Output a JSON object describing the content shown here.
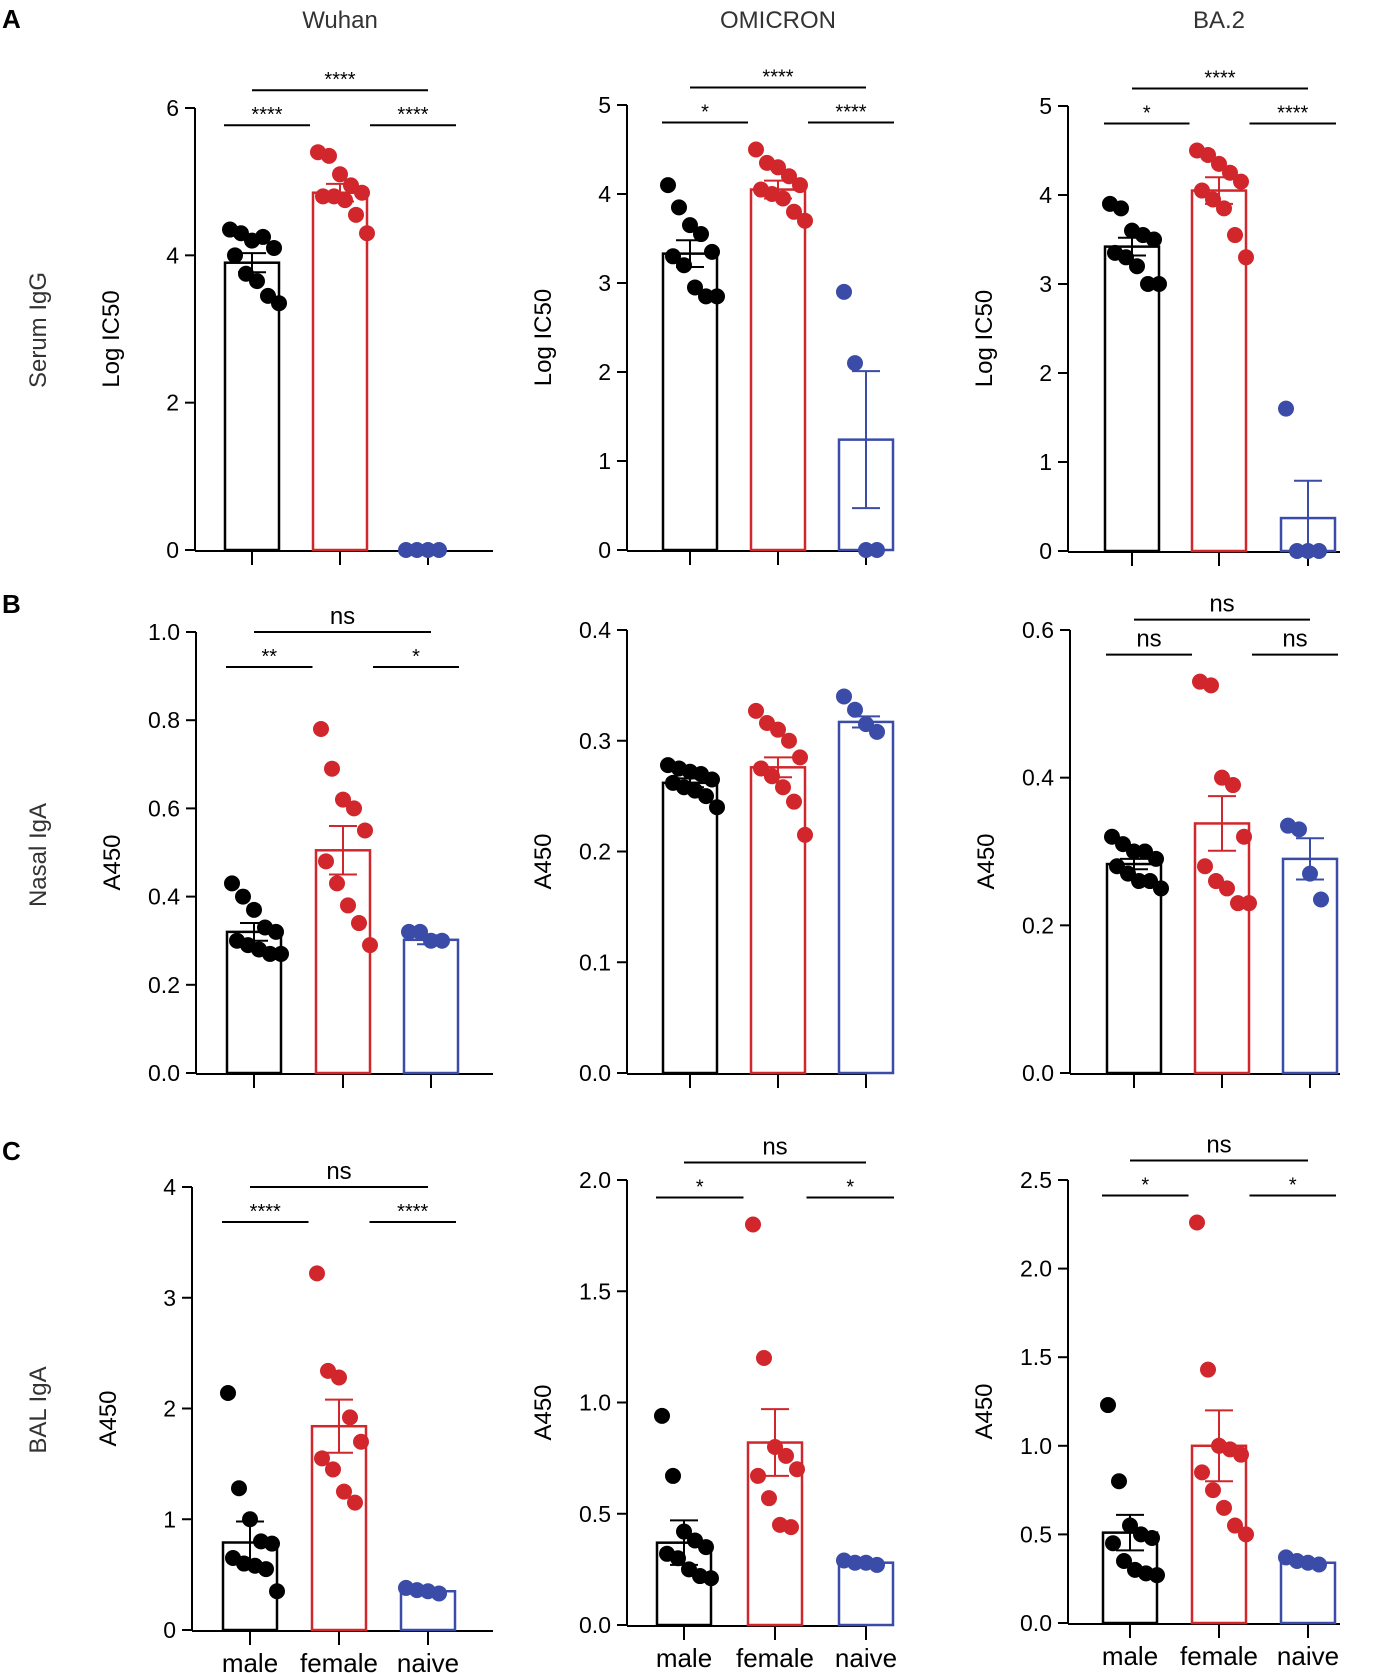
{
  "figure": {
    "panel_letters": [
      "A",
      "B",
      "C"
    ],
    "row_labels": [
      "Serum IgG",
      "Nasal IgA",
      "BAL IgA"
    ],
    "column_titles": [
      "Wuhan",
      "OMICRON",
      "BA.2"
    ],
    "group_labels": [
      "male",
      "female",
      "naive"
    ],
    "colors": {
      "male": "#000000",
      "female": "#d1262b",
      "naive": "#3a4ca8"
    }
  },
  "chart_data": [
    {
      "type": "bar",
      "panel": "A",
      "row_label": "Serum IgG",
      "title": "Wuhan",
      "ylabel": "Log IC50",
      "ylim": [
        0,
        6
      ],
      "yticks": [
        "0",
        "2",
        "4",
        "6"
      ],
      "categories": [
        "male",
        "female",
        "naive"
      ],
      "show_category_labels": false,
      "means": [
        3.9,
        4.85,
        0.0
      ],
      "sem": [
        0.13,
        0.12,
        0.0
      ],
      "points": [
        [
          4.35,
          4.3,
          4.2,
          4.25,
          4.1,
          4.0,
          3.75,
          3.65,
          3.45,
          3.35
        ],
        [
          5.4,
          5.35,
          5.1,
          4.95,
          4.85,
          4.8,
          4.8,
          4.75,
          4.55,
          4.3
        ],
        [
          0.0,
          0.0,
          0.0,
          0.0
        ]
      ],
      "significance": [
        {
          "from": 0,
          "to": 2,
          "label": "****",
          "level": 2
        },
        {
          "from": 0,
          "to": 1,
          "label": "****",
          "level": 1
        },
        {
          "from": 1,
          "to": 2,
          "label": "****",
          "level": 1
        }
      ]
    },
    {
      "type": "bar",
      "panel": "A",
      "row_label": "Serum IgG",
      "title": "OMICRON",
      "ylabel": "Log IC50",
      "ylim": [
        0,
        5
      ],
      "yticks": [
        "0",
        "1",
        "2",
        "3",
        "4",
        "5"
      ],
      "categories": [
        "male",
        "female",
        "naive"
      ],
      "show_category_labels": false,
      "means": [
        3.33,
        4.05,
        1.24
      ],
      "sem": [
        0.15,
        0.1,
        0.77
      ],
      "points": [
        [
          4.1,
          3.85,
          3.65,
          3.55,
          3.35,
          3.3,
          3.2,
          2.95,
          2.85,
          2.85
        ],
        [
          4.5,
          4.35,
          4.3,
          4.2,
          4.1,
          4.05,
          4.0,
          3.95,
          3.8,
          3.7
        ],
        [
          2.9,
          2.1,
          0.0,
          0.0
        ]
      ],
      "significance": [
        {
          "from": 0,
          "to": 2,
          "label": "****",
          "level": 2
        },
        {
          "from": 0,
          "to": 1,
          "label": "*",
          "level": 1
        },
        {
          "from": 1,
          "to": 2,
          "label": "****",
          "level": 1
        }
      ]
    },
    {
      "type": "bar",
      "panel": "A",
      "row_label": "Serum IgG",
      "title": "BA.2",
      "ylabel": "Log IC50",
      "ylim": [
        0,
        5
      ],
      "yticks": [
        "0",
        "1",
        "2",
        "3",
        "4",
        "5"
      ],
      "categories": [
        "male",
        "female",
        "naive"
      ],
      "show_category_labels": false,
      "means": [
        3.42,
        4.05,
        0.37
      ],
      "sem": [
        0.1,
        0.15,
        0.42
      ],
      "points": [
        [
          3.9,
          3.85,
          3.6,
          3.55,
          3.5,
          3.35,
          3.3,
          3.2,
          3.0,
          3.0
        ],
        [
          4.5,
          4.45,
          4.35,
          4.25,
          4.15,
          4.05,
          3.95,
          3.85,
          3.55,
          3.3
        ],
        [
          1.6,
          0.0,
          0.0,
          0.0
        ]
      ],
      "significance": [
        {
          "from": 0,
          "to": 2,
          "label": "****",
          "level": 2
        },
        {
          "from": 0,
          "to": 1,
          "label": "*",
          "level": 1
        },
        {
          "from": 1,
          "to": 2,
          "label": "****",
          "level": 1
        }
      ]
    },
    {
      "type": "bar",
      "panel": "B",
      "row_label": "Nasal IgA",
      "title": "",
      "ylabel": "A450",
      "ylim": [
        0,
        1.0
      ],
      "yticks": [
        "0.0",
        "0.2",
        "0.4",
        "0.6",
        "0.8",
        "1.0"
      ],
      "categories": [
        "male",
        "female",
        "naive"
      ],
      "show_category_labels": false,
      "means": [
        0.32,
        0.505,
        0.302
      ],
      "sem": [
        0.02,
        0.055,
        0.01
      ],
      "points": [
        [
          0.43,
          0.4,
          0.37,
          0.33,
          0.32,
          0.3,
          0.29,
          0.28,
          0.27,
          0.27
        ],
        [
          0.78,
          0.69,
          0.62,
          0.6,
          0.55,
          0.48,
          0.43,
          0.38,
          0.34,
          0.29
        ],
        [
          0.32,
          0.32,
          0.3,
          0.3
        ]
      ],
      "significance": [
        {
          "from": 0,
          "to": 2,
          "label": "ns",
          "level": 2
        },
        {
          "from": 0,
          "to": 1,
          "label": "**",
          "level": 1
        },
        {
          "from": 1,
          "to": 2,
          "label": "*",
          "level": 1
        }
      ]
    },
    {
      "type": "bar",
      "panel": "B",
      "row_label": "Nasal IgA",
      "title": "",
      "ylabel": "A450",
      "ylim": [
        0,
        0.4
      ],
      "yticks": [
        "0.0",
        "0.1",
        "0.2",
        "0.3",
        "0.4"
      ],
      "categories": [
        "male",
        "female",
        "naive"
      ],
      "show_category_labels": false,
      "means": [
        0.262,
        0.276,
        0.317
      ],
      "sem": [
        0.004,
        0.009,
        0.005
      ],
      "points": [
        [
          0.278,
          0.275,
          0.272,
          0.27,
          0.265,
          0.262,
          0.258,
          0.255,
          0.25,
          0.24
        ],
        [
          0.327,
          0.316,
          0.31,
          0.3,
          0.285,
          0.275,
          0.268,
          0.258,
          0.245,
          0.215
        ],
        [
          0.34,
          0.328,
          0.315,
          0.308
        ]
      ],
      "significance": []
    },
    {
      "type": "bar",
      "panel": "B",
      "row_label": "Nasal IgA",
      "title": "",
      "ylabel": "A450",
      "ylim": [
        0,
        0.6
      ],
      "yticks": [
        "0.0",
        "0.2",
        "0.4",
        "0.6"
      ],
      "categories": [
        "male",
        "female",
        "naive"
      ],
      "show_category_labels": false,
      "means": [
        0.283,
        0.338,
        0.29
      ],
      "sem": [
        0.007,
        0.037,
        0.028
      ],
      "points": [
        [
          0.32,
          0.31,
          0.3,
          0.3,
          0.29,
          0.28,
          0.27,
          0.26,
          0.26,
          0.25
        ],
        [
          0.53,
          0.525,
          0.4,
          0.39,
          0.32,
          0.28,
          0.26,
          0.25,
          0.23,
          0.23
        ],
        [
          0.335,
          0.33,
          0.27,
          0.235
        ]
      ],
      "significance": [
        {
          "from": 0,
          "to": 2,
          "label": "ns",
          "level": 2
        },
        {
          "from": 0,
          "to": 1,
          "label": "ns",
          "level": 1
        },
        {
          "from": 1,
          "to": 2,
          "label": "ns",
          "level": 1
        }
      ]
    },
    {
      "type": "bar",
      "panel": "C",
      "row_label": "BAL IgA",
      "title": "",
      "ylabel": "A450",
      "ylim": [
        0,
        4
      ],
      "yticks": [
        "0",
        "1",
        "2",
        "3",
        "4"
      ],
      "categories": [
        "male",
        "female",
        "naive"
      ],
      "show_category_labels": true,
      "means": [
        0.79,
        1.84,
        0.35
      ],
      "sem": [
        0.19,
        0.24,
        0.02
      ],
      "points": [
        [
          2.14,
          1.28,
          1.0,
          0.8,
          0.78,
          0.65,
          0.6,
          0.58,
          0.55,
          0.35
        ],
        [
          3.22,
          2.34,
          2.28,
          1.92,
          1.7,
          1.55,
          1.45,
          1.25,
          1.15
        ],
        [
          0.38,
          0.36,
          0.35,
          0.33
        ]
      ],
      "significance": [
        {
          "from": 0,
          "to": 2,
          "label": "ns",
          "level": 2
        },
        {
          "from": 0,
          "to": 1,
          "label": "****",
          "level": 1
        },
        {
          "from": 1,
          "to": 2,
          "label": "****",
          "level": 1
        }
      ]
    },
    {
      "type": "bar",
      "panel": "C",
      "row_label": "BAL IgA",
      "title": "",
      "ylabel": "A450",
      "ylim": [
        0,
        2.0
      ],
      "yticks": [
        "0.0",
        "0.5",
        "1.0",
        "1.5",
        "2.0"
      ],
      "categories": [
        "male",
        "female",
        "naive"
      ],
      "show_category_labels": true,
      "means": [
        0.37,
        0.82,
        0.28
      ],
      "sem": [
        0.1,
        0.15,
        0.01
      ],
      "points": [
        [
          0.94,
          0.67,
          0.42,
          0.38,
          0.35,
          0.32,
          0.3,
          0.25,
          0.22,
          0.21
        ],
        [
          1.8,
          1.2,
          0.8,
          0.76,
          0.7,
          0.67,
          0.57,
          0.45,
          0.44
        ],
        [
          0.29,
          0.28,
          0.28,
          0.27
        ]
      ],
      "significance": [
        {
          "from": 0,
          "to": 2,
          "label": "ns",
          "level": 2
        },
        {
          "from": 0,
          "to": 1,
          "label": "*",
          "level": 1
        },
        {
          "from": 1,
          "to": 2,
          "label": "*",
          "level": 1
        }
      ]
    },
    {
      "type": "bar",
      "panel": "C",
      "row_label": "BAL IgA",
      "title": "",
      "ylabel": "A450",
      "ylim": [
        0,
        2.5
      ],
      "yticks": [
        "0.0",
        "0.5",
        "1.0",
        "1.5",
        "2.0",
        "2.5"
      ],
      "categories": [
        "male",
        "female",
        "naive"
      ],
      "show_category_labels": true,
      "means": [
        0.51,
        1.0,
        0.34
      ],
      "sem": [
        0.1,
        0.2,
        0.02
      ],
      "points": [
        [
          1.23,
          0.8,
          0.55,
          0.5,
          0.48,
          0.45,
          0.35,
          0.3,
          0.28,
          0.27
        ],
        [
          2.26,
          1.43,
          1.0,
          0.98,
          0.95,
          0.85,
          0.75,
          0.65,
          0.55,
          0.5
        ],
        [
          0.37,
          0.35,
          0.34,
          0.33
        ]
      ],
      "significance": [
        {
          "from": 0,
          "to": 2,
          "label": "ns",
          "level": 2
        },
        {
          "from": 0,
          "to": 1,
          "label": "*",
          "level": 1
        },
        {
          "from": 1,
          "to": 2,
          "label": "*",
          "level": 1
        }
      ]
    }
  ]
}
